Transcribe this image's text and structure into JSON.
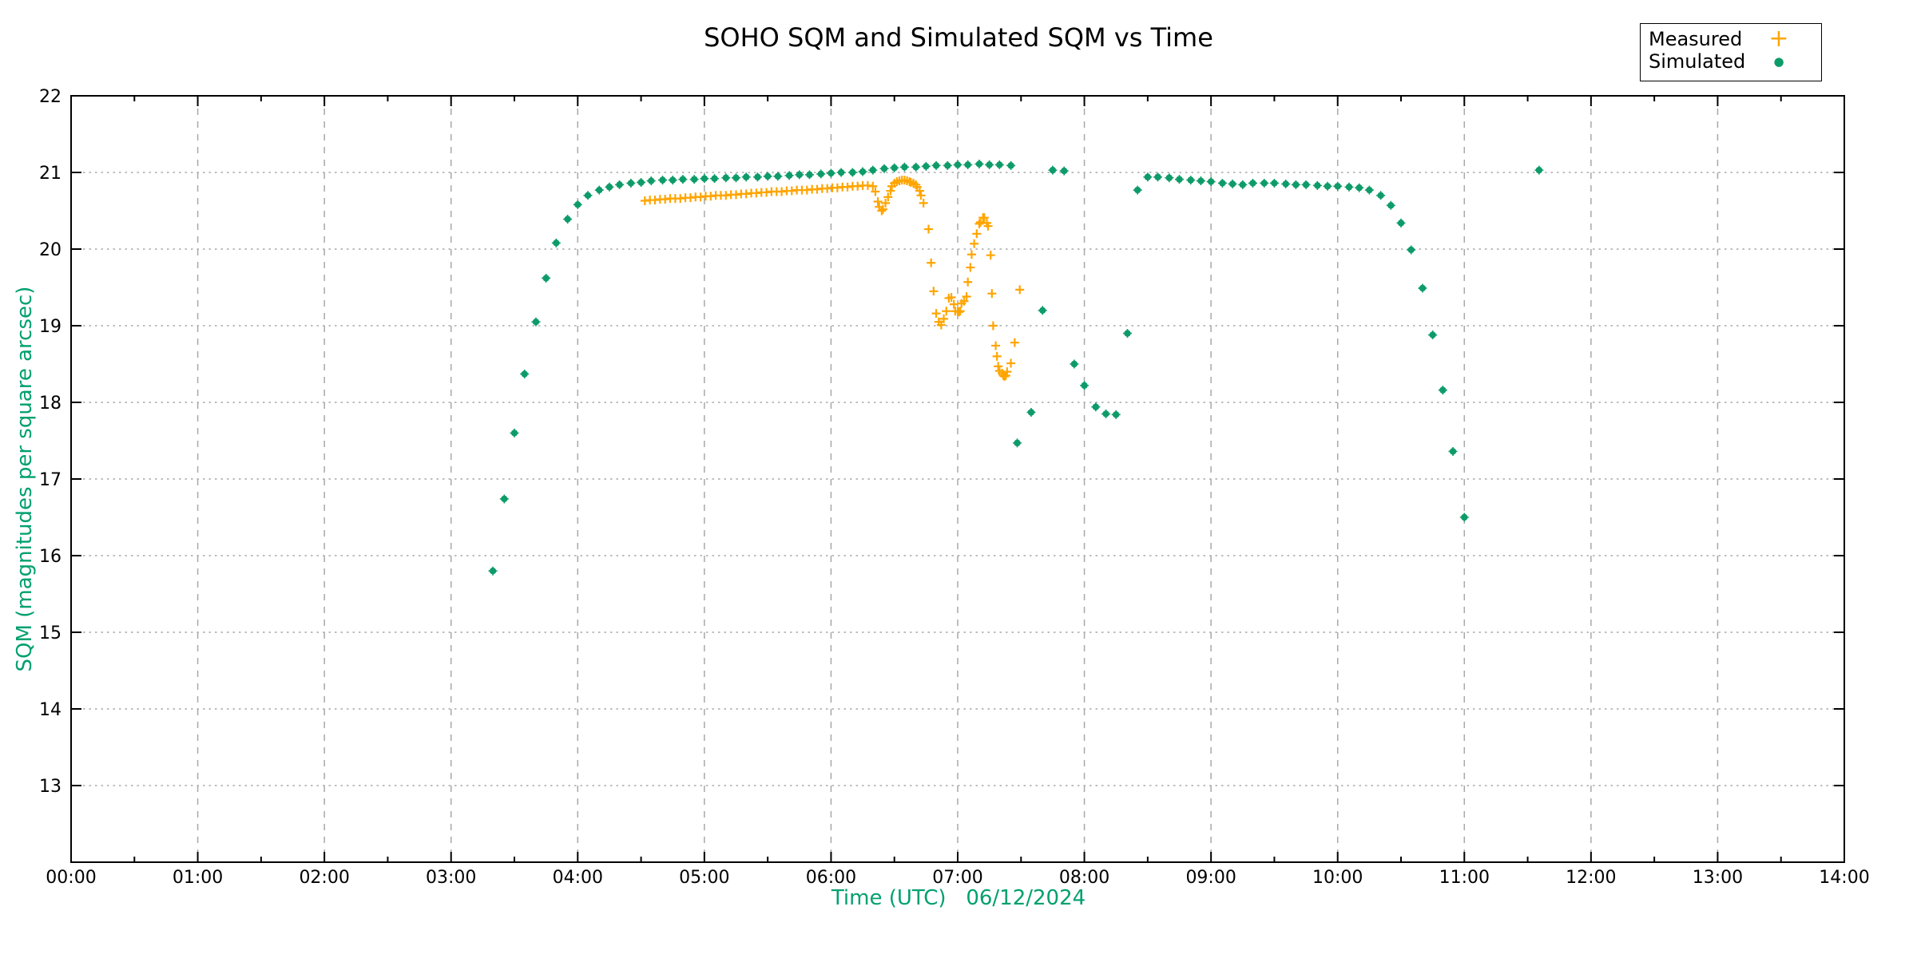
{
  "title": "SOHO SQM and Simulated SQM vs Time",
  "legend": {
    "items": [
      {
        "label": "Measured",
        "marker": "plus",
        "color": "#FFA500"
      },
      {
        "label": "Simulated",
        "marker": "dot",
        "color": "#0D9B69"
      }
    ]
  },
  "axes": {
    "xlabel": "Time (UTC)   06/12/2024",
    "ylabel": "SQM (magnitudes per square arcsec)",
    "label_color": "#00A06E"
  },
  "colors": {
    "measured": "#FFA500",
    "simulated": "#0D9B69",
    "grid": "#a8a8a8",
    "axis": "#000000",
    "background": "#ffffff"
  },
  "chart_data": {
    "type": "scatter",
    "title": "SOHO SQM and Simulated SQM vs Time",
    "xlabel": "Time (UTC)   06/12/2024",
    "ylabel": "SQM (magnitudes per square arcsec)",
    "x_unit": "hours UTC on 06/12/2024",
    "xlim": [
      0,
      14
    ],
    "ylim": [
      12,
      22
    ],
    "grid": true,
    "legend_position": "top-right-outside",
    "x_ticks": [
      0,
      1,
      2,
      3,
      4,
      5,
      6,
      7,
      8,
      9,
      10,
      11,
      12,
      13,
      14
    ],
    "x_tick_labels": [
      "00:00",
      "01:00",
      "02:00",
      "03:00",
      "04:00",
      "05:00",
      "06:00",
      "07:00",
      "08:00",
      "09:00",
      "10:00",
      "11:00",
      "12:00",
      "13:00",
      "14:00"
    ],
    "x_minor_step": 0.5,
    "y_ticks": [
      13,
      14,
      15,
      16,
      17,
      18,
      19,
      20,
      21,
      22
    ],
    "y_gridlines": [
      13,
      14,
      15,
      16,
      17,
      18,
      19,
      20,
      21
    ],
    "x_gridlines": [
      1,
      2,
      3,
      4,
      5,
      6,
      7,
      8,
      9,
      10,
      11,
      12,
      13
    ],
    "series": [
      {
        "name": "Measured",
        "marker": "plus",
        "color": "#FFA500",
        "points": [
          [
            4.53,
            20.63
          ],
          [
            4.57,
            20.64
          ],
          [
            4.61,
            20.64
          ],
          [
            4.65,
            20.65
          ],
          [
            4.69,
            20.65
          ],
          [
            4.73,
            20.66
          ],
          [
            4.77,
            20.66
          ],
          [
            4.81,
            20.66
          ],
          [
            4.85,
            20.67
          ],
          [
            4.89,
            20.67
          ],
          [
            4.93,
            20.68
          ],
          [
            4.97,
            20.68
          ],
          [
            5.01,
            20.69
          ],
          [
            5.05,
            20.69
          ],
          [
            5.09,
            20.7
          ],
          [
            5.13,
            20.7
          ],
          [
            5.17,
            20.7
          ],
          [
            5.21,
            20.71
          ],
          [
            5.25,
            20.71
          ],
          [
            5.29,
            20.72
          ],
          [
            5.33,
            20.72
          ],
          [
            5.37,
            20.73
          ],
          [
            5.41,
            20.73
          ],
          [
            5.45,
            20.74
          ],
          [
            5.49,
            20.74
          ],
          [
            5.53,
            20.75
          ],
          [
            5.57,
            20.75
          ],
          [
            5.61,
            20.75
          ],
          [
            5.65,
            20.76
          ],
          [
            5.69,
            20.76
          ],
          [
            5.73,
            20.77
          ],
          [
            5.77,
            20.77
          ],
          [
            5.81,
            20.77
          ],
          [
            5.85,
            20.78
          ],
          [
            5.89,
            20.78
          ],
          [
            5.93,
            20.79
          ],
          [
            5.97,
            20.79
          ],
          [
            6.01,
            20.8
          ],
          [
            6.05,
            20.8
          ],
          [
            6.09,
            20.81
          ],
          [
            6.13,
            20.81
          ],
          [
            6.17,
            20.82
          ],
          [
            6.21,
            20.82
          ],
          [
            6.25,
            20.83
          ],
          [
            6.29,
            20.83
          ],
          [
            6.33,
            20.82
          ],
          [
            6.35,
            20.75
          ],
          [
            6.37,
            20.62
          ],
          [
            6.38,
            20.55
          ],
          [
            6.4,
            20.5
          ],
          [
            6.41,
            20.52
          ],
          [
            6.43,
            20.6
          ],
          [
            6.45,
            20.68
          ],
          [
            6.47,
            20.76
          ],
          [
            6.48,
            20.82
          ],
          [
            6.5,
            20.86
          ],
          [
            6.52,
            20.88
          ],
          [
            6.54,
            20.89
          ],
          [
            6.56,
            20.9
          ],
          [
            6.58,
            20.9
          ],
          [
            6.6,
            20.89
          ],
          [
            6.62,
            20.88
          ],
          [
            6.63,
            20.87
          ],
          [
            6.65,
            20.86
          ],
          [
            6.67,
            20.84
          ],
          [
            6.68,
            20.81
          ],
          [
            6.7,
            20.76
          ],
          [
            6.71,
            20.7
          ],
          [
            6.73,
            20.6
          ],
          [
            6.77,
            20.26
          ],
          [
            6.79,
            19.82
          ],
          [
            6.81,
            19.45
          ],
          [
            6.83,
            19.16
          ],
          [
            6.85,
            19.05
          ],
          [
            6.87,
            19.01
          ],
          [
            6.89,
            19.09
          ],
          [
            6.91,
            19.19
          ],
          [
            6.93,
            19.36
          ],
          [
            6.95,
            19.37
          ],
          [
            6.97,
            19.28
          ],
          [
            6.98,
            19.19
          ],
          [
            7.0,
            19.19
          ],
          [
            7.01,
            19.18
          ],
          [
            7.02,
            19.19
          ],
          [
            7.03,
            19.29
          ],
          [
            7.05,
            19.32
          ],
          [
            7.07,
            19.38
          ],
          [
            7.08,
            19.57
          ],
          [
            7.1,
            19.76
          ],
          [
            7.11,
            19.93
          ],
          [
            7.13,
            20.07
          ],
          [
            7.15,
            20.2
          ],
          [
            7.17,
            20.33
          ],
          [
            7.18,
            20.35
          ],
          [
            7.2,
            20.41
          ],
          [
            7.21,
            20.41
          ],
          [
            7.23,
            20.34
          ],
          [
            7.24,
            20.3
          ],
          [
            7.26,
            19.92
          ],
          [
            7.27,
            19.42
          ],
          [
            7.28,
            19.0
          ],
          [
            7.3,
            18.74
          ],
          [
            7.31,
            18.6
          ],
          [
            7.32,
            18.47
          ],
          [
            7.33,
            18.41
          ],
          [
            7.35,
            18.38
          ],
          [
            7.36,
            18.35
          ],
          [
            7.37,
            18.34
          ],
          [
            7.38,
            18.35
          ],
          [
            7.39,
            18.4
          ],
          [
            7.42,
            18.51
          ],
          [
            7.45,
            18.78
          ],
          [
            7.49,
            19.47
          ]
        ]
      },
      {
        "name": "Simulated",
        "marker": "filled-circle",
        "color": "#0D9B69",
        "points": [
          [
            3.33,
            15.8
          ],
          [
            3.42,
            16.74
          ],
          [
            3.5,
            17.6
          ],
          [
            3.58,
            18.37
          ],
          [
            3.67,
            19.05
          ],
          [
            3.75,
            19.62
          ],
          [
            3.83,
            20.08
          ],
          [
            3.92,
            20.39
          ],
          [
            4.0,
            20.58
          ],
          [
            4.08,
            20.7
          ],
          [
            4.17,
            20.77
          ],
          [
            4.25,
            20.81
          ],
          [
            4.33,
            20.84
          ],
          [
            4.42,
            20.86
          ],
          [
            4.5,
            20.87
          ],
          [
            4.58,
            20.89
          ],
          [
            4.67,
            20.9
          ],
          [
            4.75,
            20.9
          ],
          [
            4.83,
            20.91
          ],
          [
            4.92,
            20.91
          ],
          [
            5.0,
            20.92
          ],
          [
            5.08,
            20.92
          ],
          [
            5.17,
            20.93
          ],
          [
            5.25,
            20.93
          ],
          [
            5.33,
            20.94
          ],
          [
            5.42,
            20.94
          ],
          [
            5.5,
            20.95
          ],
          [
            5.58,
            20.95
          ],
          [
            5.67,
            20.96
          ],
          [
            5.75,
            20.97
          ],
          [
            5.83,
            20.97
          ],
          [
            5.92,
            20.98
          ],
          [
            6.0,
            20.99
          ],
          [
            6.08,
            21.0
          ],
          [
            6.17,
            21.0
          ],
          [
            6.25,
            21.01
          ],
          [
            6.33,
            21.03
          ],
          [
            6.42,
            21.05
          ],
          [
            6.5,
            21.06
          ],
          [
            6.58,
            21.07
          ],
          [
            6.67,
            21.07
          ],
          [
            6.75,
            21.08
          ],
          [
            6.83,
            21.09
          ],
          [
            6.92,
            21.09
          ],
          [
            7.0,
            21.1
          ],
          [
            7.08,
            21.1
          ],
          [
            7.17,
            21.11
          ],
          [
            7.25,
            21.1
          ],
          [
            7.33,
            21.1
          ],
          [
            7.42,
            21.09
          ],
          [
            7.47,
            17.47
          ],
          [
            7.58,
            17.87
          ],
          [
            7.67,
            19.2
          ],
          [
            7.75,
            21.03
          ],
          [
            7.84,
            21.02
          ],
          [
            7.92,
            18.5
          ],
          [
            8.0,
            18.22
          ],
          [
            8.09,
            17.94
          ],
          [
            8.17,
            17.85
          ],
          [
            8.25,
            17.84
          ],
          [
            8.34,
            18.9
          ],
          [
            8.42,
            20.77
          ],
          [
            8.5,
            20.94
          ],
          [
            8.58,
            20.94
          ],
          [
            8.67,
            20.93
          ],
          [
            8.75,
            20.91
          ],
          [
            8.84,
            20.9
          ],
          [
            8.92,
            20.89
          ],
          [
            9.0,
            20.88
          ],
          [
            9.09,
            20.86
          ],
          [
            9.17,
            20.85
          ],
          [
            9.25,
            20.84
          ],
          [
            9.33,
            20.86
          ],
          [
            9.42,
            20.86
          ],
          [
            9.5,
            20.86
          ],
          [
            9.59,
            20.85
          ],
          [
            9.67,
            20.84
          ],
          [
            9.75,
            20.84
          ],
          [
            9.84,
            20.83
          ],
          [
            9.92,
            20.82
          ],
          [
            10.0,
            20.82
          ],
          [
            10.09,
            20.81
          ],
          [
            10.17,
            20.8
          ],
          [
            10.25,
            20.77
          ],
          [
            10.34,
            20.7
          ],
          [
            10.42,
            20.57
          ],
          [
            10.5,
            20.34
          ],
          [
            10.58,
            19.99
          ],
          [
            10.67,
            19.49
          ],
          [
            10.75,
            18.88
          ],
          [
            10.83,
            18.16
          ],
          [
            10.91,
            17.36
          ],
          [
            11.0,
            16.5
          ],
          [
            11.59,
            21.03
          ]
        ]
      }
    ]
  }
}
